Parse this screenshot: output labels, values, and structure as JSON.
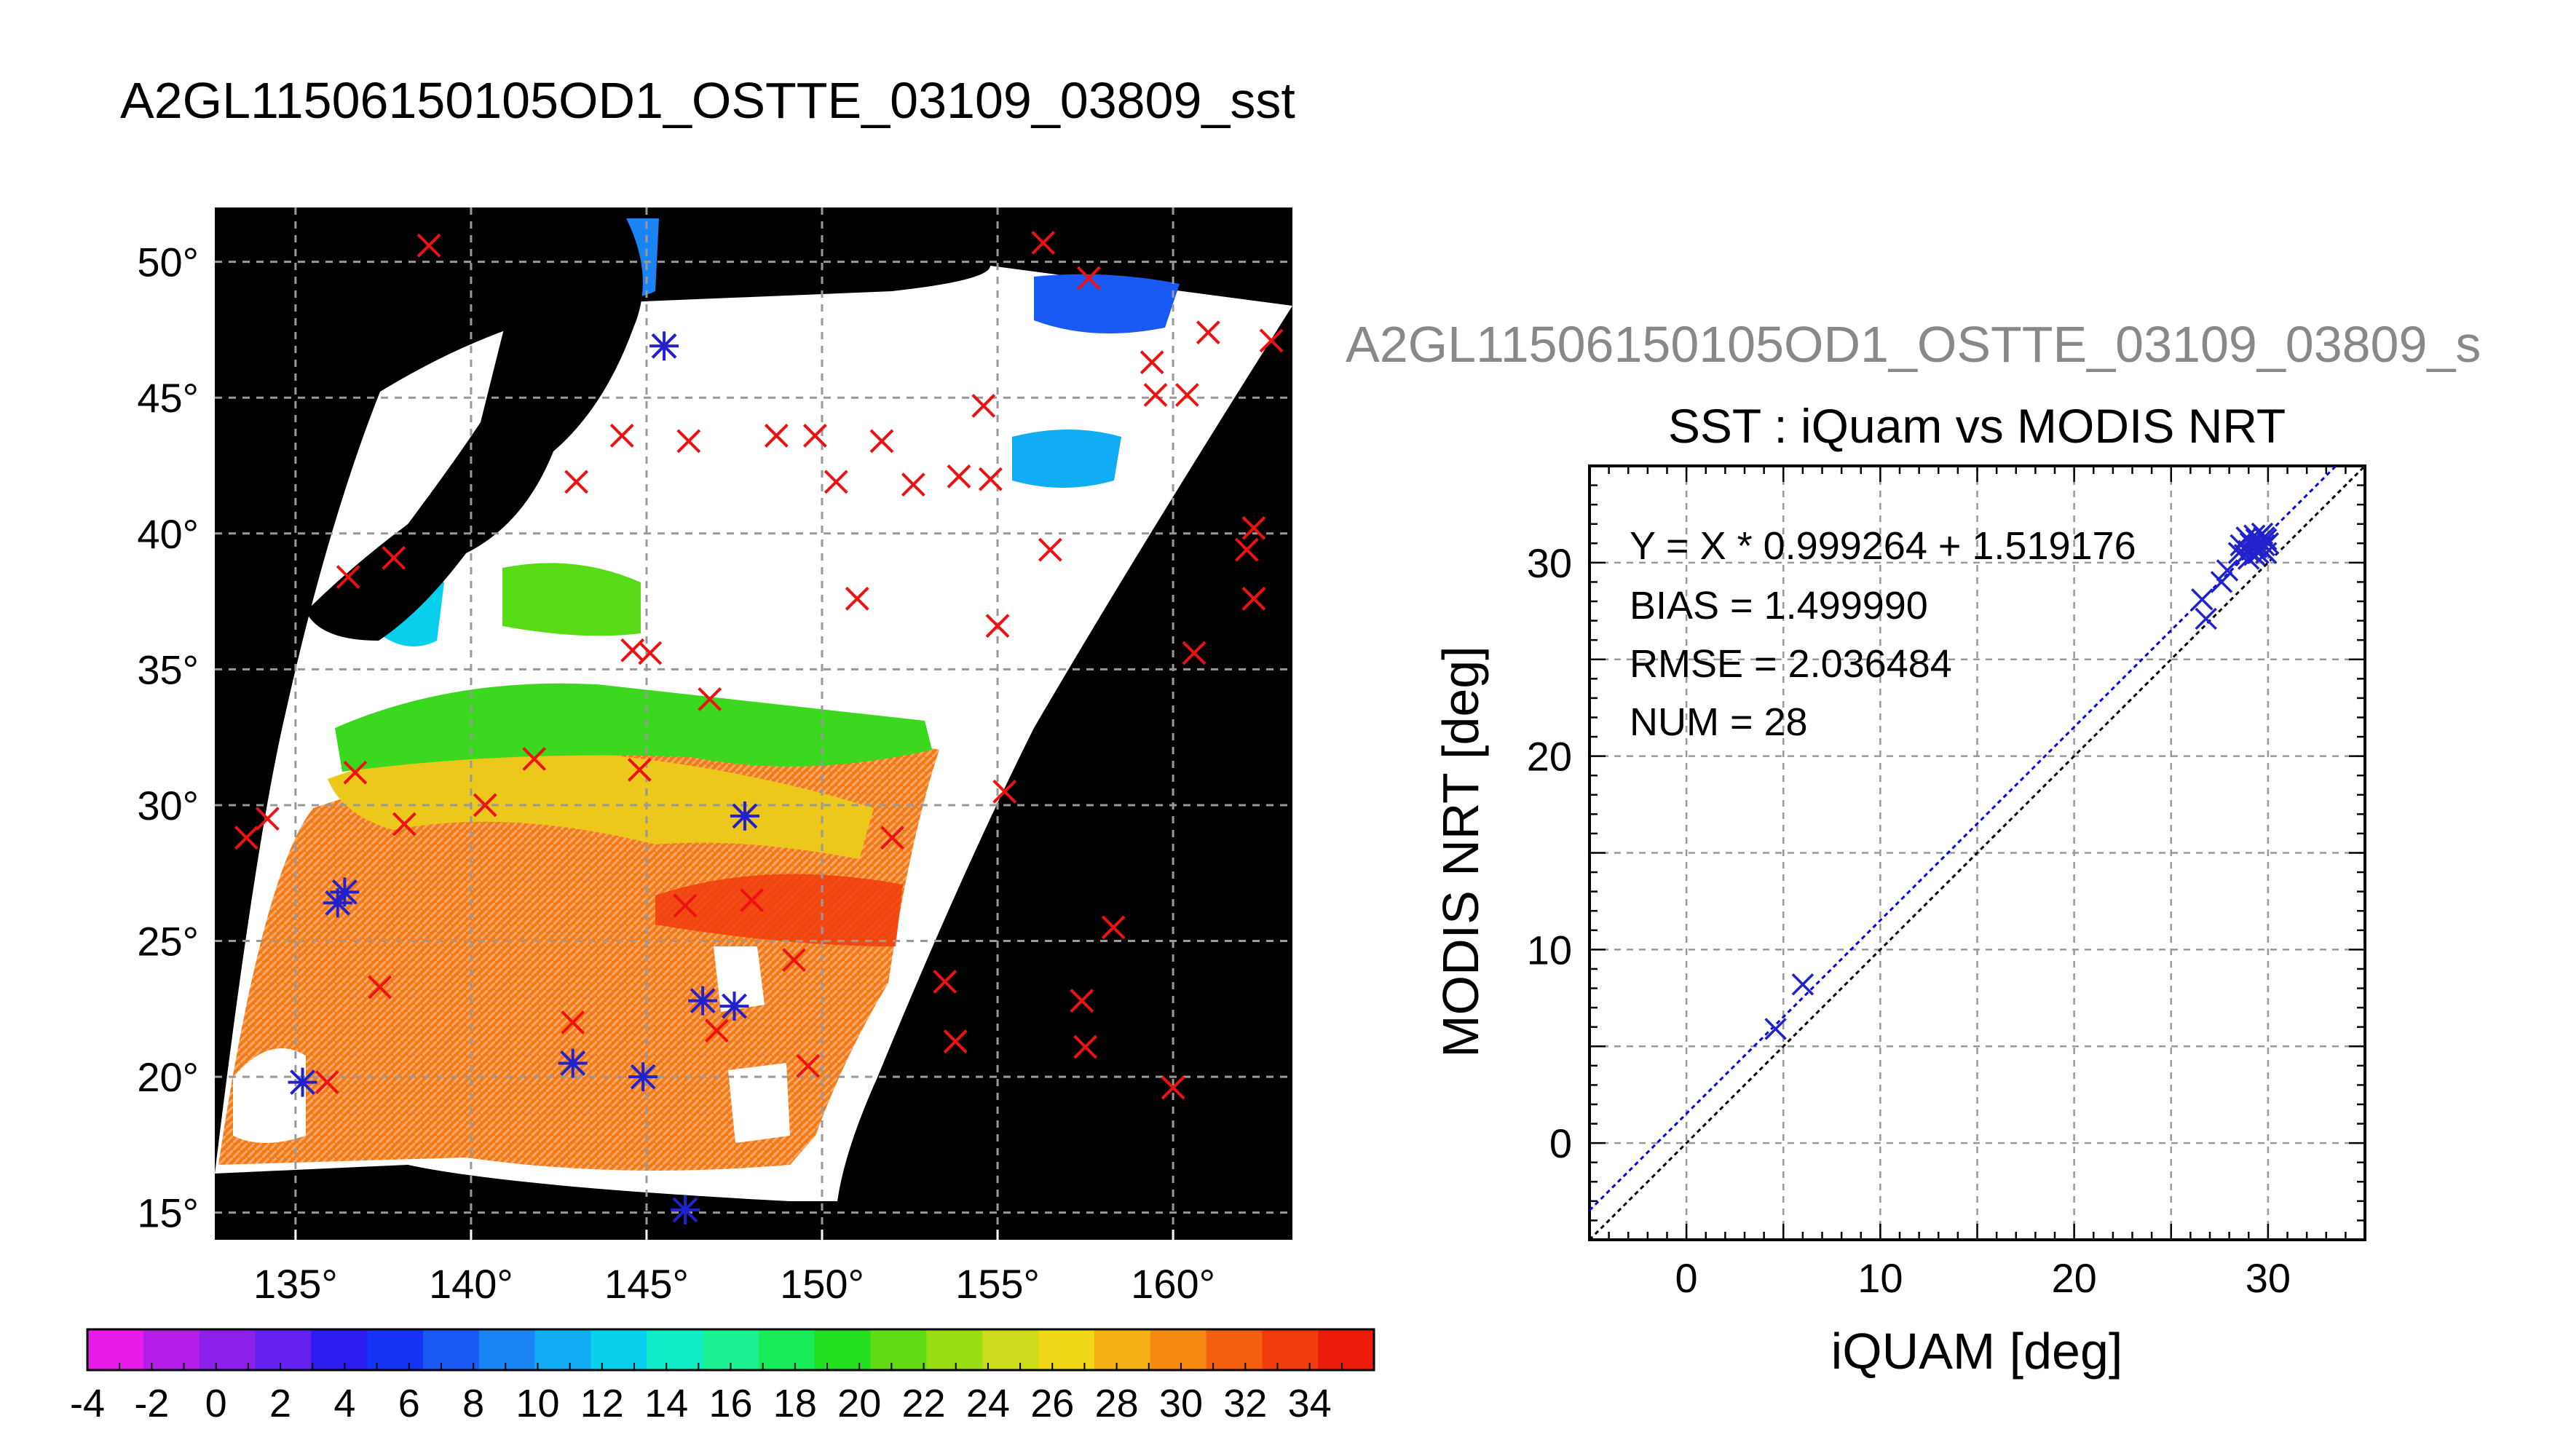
{
  "main_title": "A2GL11506150105OD1_OSTTE_03109_03809_sst",
  "scatter_supertitle": "A2GL11506150105OD1_OSTTE_03109_03809_s",
  "colors": {
    "map_background": "#000000",
    "marker_red": "#ee1111",
    "marker_blue": "#2222cc",
    "grid": "#999999",
    "fit_line": "#0000ee",
    "one_to_one_line": "#000000",
    "supertitle_gray": "#888888"
  },
  "chart_data": [
    {
      "type": "map",
      "lon_ticks": [
        "135°",
        "140°",
        "145°",
        "150°",
        "155°",
        "160°"
      ],
      "lat_ticks": [
        "50°",
        "45°",
        "40°",
        "35°",
        "30°",
        "25°",
        "20°",
        "15°"
      ],
      "lon_tick_values": [
        135,
        140,
        145,
        150,
        155,
        160
      ],
      "lat_tick_values": [
        50,
        45,
        40,
        35,
        30,
        25,
        20,
        15
      ],
      "grid": true,
      "red_markers": [
        [
          138.8,
          50.6
        ],
        [
          156.3,
          50.7
        ],
        [
          157.6,
          49.4
        ],
        [
          161.0,
          47.4
        ],
        [
          162.8,
          47.1
        ],
        [
          159.4,
          46.3
        ],
        [
          145.5,
          46.9
        ],
        [
          159.5,
          45.1
        ],
        [
          160.4,
          45.1
        ],
        [
          154.6,
          44.7
        ],
        [
          149.8,
          43.6
        ],
        [
          151.7,
          43.4
        ],
        [
          144.3,
          43.6
        ],
        [
          146.2,
          43.4
        ],
        [
          148.7,
          43.6
        ],
        [
          150.4,
          41.9
        ],
        [
          153.9,
          42.1
        ],
        [
          154.8,
          42.0
        ],
        [
          152.6,
          41.8
        ],
        [
          143.0,
          41.9
        ],
        [
          137.8,
          39.1
        ],
        [
          136.5,
          38.4
        ],
        [
          156.5,
          39.4
        ],
        [
          162.1,
          39.4
        ],
        [
          162.3,
          40.2
        ],
        [
          151.0,
          37.6
        ],
        [
          162.3,
          37.6
        ],
        [
          155.0,
          36.6
        ],
        [
          144.6,
          35.7
        ],
        [
          145.1,
          35.6
        ],
        [
          160.6,
          35.6
        ],
        [
          146.8,
          33.9
        ],
        [
          141.8,
          31.7
        ],
        [
          144.8,
          31.3
        ],
        [
          136.7,
          31.2
        ],
        [
          155.2,
          30.5
        ],
        [
          140.4,
          30.0
        ],
        [
          147.8,
          29.6
        ],
        [
          134.2,
          29.5
        ],
        [
          138.1,
          29.3
        ],
        [
          152.0,
          28.8
        ],
        [
          133.6,
          28.8
        ],
        [
          136.4,
          26.8
        ],
        [
          148.0,
          26.5
        ],
        [
          146.1,
          26.3
        ],
        [
          149.2,
          24.3
        ],
        [
          158.3,
          25.5
        ],
        [
          137.4,
          23.3
        ],
        [
          153.5,
          23.5
        ],
        [
          157.4,
          22.8
        ],
        [
          146.6,
          22.8
        ],
        [
          147.0,
          21.7
        ],
        [
          142.9,
          22.0
        ],
        [
          153.8,
          21.3
        ],
        [
          157.5,
          21.1
        ],
        [
          149.6,
          20.4
        ],
        [
          160.0,
          19.6
        ],
        [
          135.9,
          19.8
        ]
      ],
      "blue_markers": [
        [
          145.5,
          46.9
        ],
        [
          147.8,
          29.6
        ],
        [
          136.4,
          26.8
        ],
        [
          136.2,
          26.4
        ],
        [
          146.6,
          22.8
        ],
        [
          147.5,
          22.6
        ],
        [
          142.9,
          20.5
        ],
        [
          144.9,
          20.0
        ],
        [
          135.2,
          19.8
        ],
        [
          146.1,
          15.1
        ]
      ]
    },
    {
      "type": "colorbar",
      "labels": [
        "-4",
        "-2",
        "0",
        "2",
        "4",
        "6",
        "8",
        "10",
        "12",
        "14",
        "16",
        "18",
        "20",
        "22",
        "24",
        "26",
        "28",
        "30",
        "32",
        "34"
      ],
      "range": [
        -4,
        36
      ],
      "colors": [
        "#e81ce8",
        "#b41ee8",
        "#8c20ea",
        "#6420ee",
        "#2c1cf0",
        "#1634f4",
        "#1a5af4",
        "#1a84f4",
        "#10acf4",
        "#08d0ec",
        "#10ecc8",
        "#1cf090",
        "#18ec58",
        "#24e020",
        "#60dc14",
        "#98dc14",
        "#ccdc1c",
        "#f0d818",
        "#f4b014",
        "#f48810",
        "#f46010",
        "#f03c0c",
        "#ec1c0c"
      ]
    },
    {
      "type": "scatter",
      "title": "SST : iQuam vs MODIS NRT",
      "xlabel": "iQUAM [deg]",
      "ylabel": "MODIS NRT [deg]",
      "xlim": [
        -5,
        35
      ],
      "ylim": [
        -5,
        35
      ],
      "xticks": [
        "0",
        "10",
        "20",
        "30"
      ],
      "yticks": [
        "0",
        "10",
        "20",
        "30"
      ],
      "grid": true,
      "annotations": [
        "Y = X * 0.999264 + 1.519176",
        "BIAS = 1.499990",
        "RMSE = 2.036484",
        "NUM = 28"
      ],
      "fit": {
        "slope": 0.999264,
        "intercept": 1.519176
      },
      "points": [
        [
          4.6,
          5.9
        ],
        [
          6.0,
          8.2
        ],
        [
          26.6,
          28.1
        ],
        [
          26.8,
          27.1
        ],
        [
          27.6,
          29.0
        ],
        [
          27.9,
          29.6
        ],
        [
          28.5,
          30.5
        ],
        [
          28.6,
          30.9
        ],
        [
          28.8,
          30.4
        ],
        [
          28.9,
          31.3
        ],
        [
          29.0,
          30.6
        ],
        [
          29.1,
          31.0
        ],
        [
          29.2,
          30.9
        ],
        [
          29.3,
          31.4
        ],
        [
          29.4,
          30.8
        ],
        [
          29.4,
          31.2
        ],
        [
          29.5,
          30.5
        ],
        [
          29.6,
          31.1
        ],
        [
          29.7,
          30.7
        ],
        [
          29.7,
          31.5
        ],
        [
          29.8,
          30.9
        ],
        [
          29.9,
          31.2
        ],
        [
          29.9,
          30.5
        ],
        [
          30.0,
          31.0
        ],
        [
          29.0,
          30.2
        ],
        [
          29.3,
          30.4
        ],
        [
          29.6,
          30.8
        ],
        [
          29.8,
          31.3
        ]
      ]
    }
  ]
}
